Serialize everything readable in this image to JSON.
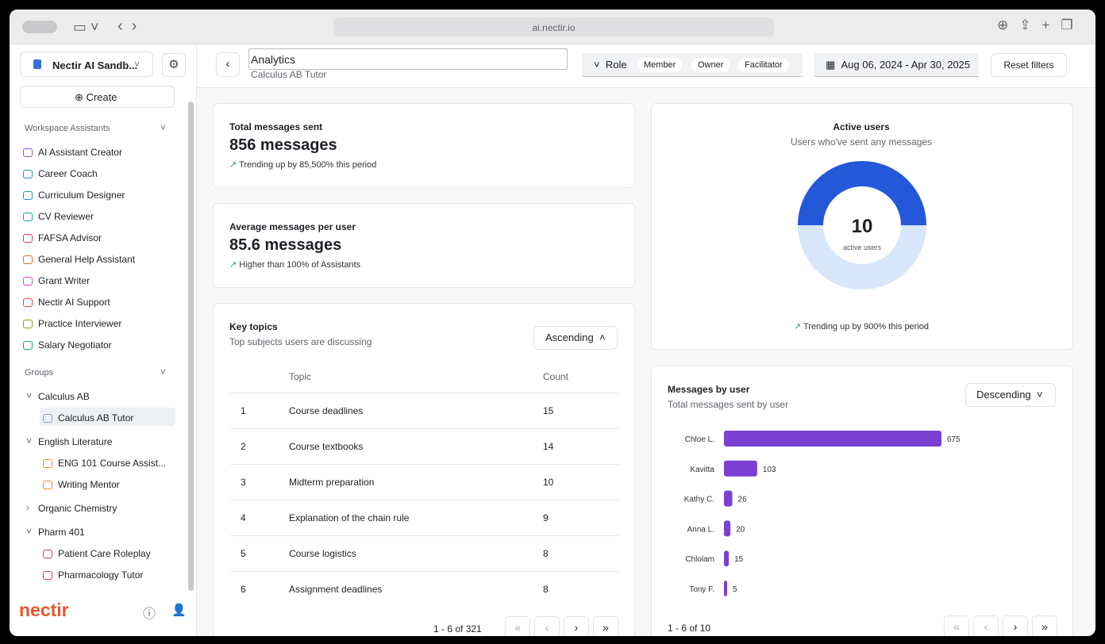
{
  "browser": {
    "url": "ai.nectir.io"
  },
  "sidebar": {
    "workspace": "Nectir AI Sandb...",
    "create": "Create",
    "workspace_section": "Workspace Assistants",
    "assistants": [
      "AI Assistant Creator",
      "Career Coach",
      "Curriculum Designer",
      "CV Reviewer",
      "FAFSA Advisor",
      "General Help Assistant",
      "Grant Writer",
      "Nectir AI Support",
      "Practice Interviewer",
      "Salary Negotiator"
    ],
    "groups_section": "Groups",
    "groups": [
      {
        "name": "Calculus AB",
        "items": [
          "Calculus AB Tutor"
        ]
      },
      {
        "name": "English Literature",
        "items": [
          "ENG 101 Course Assist...",
          "Writing Mentor"
        ]
      },
      {
        "name": "Organic Chemistry",
        "items": []
      },
      {
        "name": "Pharm 401",
        "items": [
          "Patient Care Roleplay",
          "Pharmacology Tutor"
        ]
      }
    ],
    "logo": "nectir"
  },
  "header": {
    "title": "Analytics",
    "subtitle": "Calculus AB Tutor",
    "role_label": "Role",
    "roles": [
      "Member",
      "Owner",
      "Facilitator"
    ],
    "date_range": "Aug 06, 2024 - Apr 30, 2025",
    "reset": "Reset filters"
  },
  "total_messages": {
    "label": "Total messages sent",
    "value": "856 messages",
    "trend": "Trending up by 85,500% this period"
  },
  "average_messages": {
    "label": "Average messages per user",
    "value": "85.6 messages",
    "trend": "Higher than 100% of Assistants"
  },
  "key_topics": {
    "title": "Key topics",
    "subtitle": "Top subjects users are discussing",
    "sort": "Ascending",
    "columns": [
      "Topic",
      "Count"
    ],
    "rows": [
      [
        1,
        "Course deadlines",
        15
      ],
      [
        2,
        "Course textbooks",
        14
      ],
      [
        3,
        "Midterm preparation",
        10
      ],
      [
        4,
        "Explanation of the chain rule",
        9
      ],
      [
        5,
        "Course logistics",
        8
      ],
      [
        6,
        "Assignment deadlines",
        8
      ]
    ],
    "pagination": "1 - 6 of 321"
  },
  "active_users": {
    "title": "Active users",
    "subtitle": "Users who've sent any messages",
    "value": 10,
    "value_label": "active users",
    "trend": "Trending up by 900% this period"
  },
  "messages_by_user": {
    "title": "Messages by user",
    "subtitle": "Total messages sent by user",
    "sort": "Descending",
    "users": [
      "Chloe L.",
      "Kavitta",
      "Kathy C.",
      "Anna L.",
      "Chlolam",
      "Tony F."
    ],
    "values": [
      675,
      103,
      26,
      20,
      15,
      5
    ],
    "pagination": "1 - 6 of 10"
  }
}
